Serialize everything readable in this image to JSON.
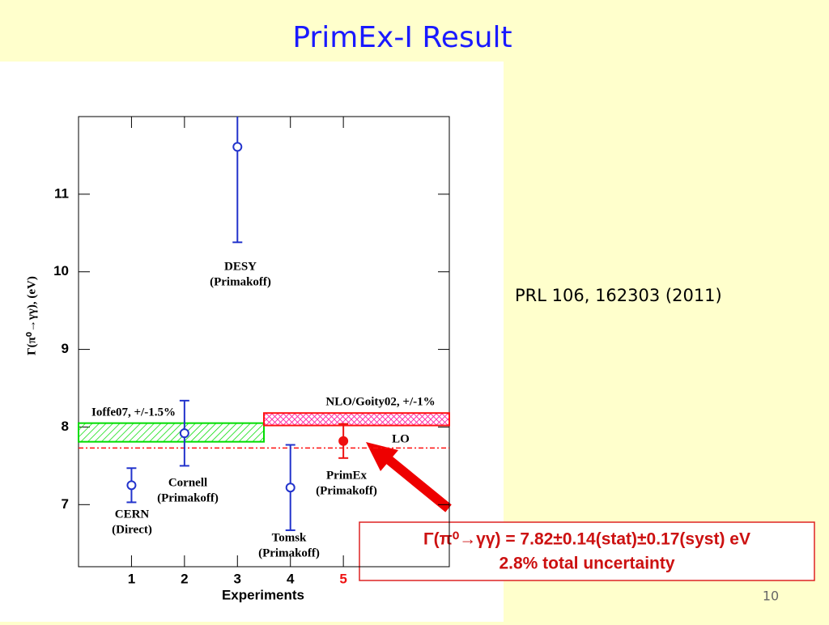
{
  "slide_title": "PrimEx-I  Result",
  "reference": "PRL 106, 162303 (2011)",
  "result": {
    "line1": "Γ(π⁰→γγ) = 7.82±0.14(stat)±0.17(syst) eV",
    "line2": "2.8% total uncertainty"
  },
  "page_number": "10",
  "chart_data": {
    "type": "scatter",
    "x_label": "Experiments",
    "y_label": "Γ(π⁰→γγ),   (eV)",
    "x": [
      1,
      2,
      3,
      4,
      5
    ],
    "values": [
      7.25,
      7.92,
      11.61,
      7.22,
      7.82
    ],
    "errors": [
      0.22,
      0.42,
      1.23,
      0.55,
      0.22
    ],
    "point_labels": [
      [
        "CERN",
        "(Direct)"
      ],
      [
        "Cornell",
        "(Primakoff)"
      ],
      [
        "DESY",
        "(Primakoff)"
      ],
      [
        "Tomsk",
        "(Primakoff)"
      ],
      [
        "PrimEx",
        "(Primakoff)"
      ]
    ],
    "point_colors": [
      "#2233cc",
      "#2233cc",
      "#2233cc",
      "#2233cc",
      "#ee1111"
    ],
    "xtick_colors": [
      "#000000",
      "#000000",
      "#000000",
      "#000000",
      "#ee1111"
    ],
    "bands": [
      {
        "label": "Ioffe07, +/-1.5%",
        "x": [
          0,
          3.5
        ],
        "y": [
          7.81,
          8.05
        ],
        "color": "#00dd00"
      },
      {
        "label": "NLO/Goity02, +/-1%",
        "x": [
          3.5,
          7
        ],
        "y": [
          8.02,
          8.18
        ],
        "color": "#ff1111"
      }
    ],
    "lines": [
      {
        "label": "LO",
        "y": 7.73,
        "color": "#ff1111"
      }
    ],
    "xlim": [
      0,
      7
    ],
    "ylim": [
      6.2,
      12
    ],
    "xticks": [
      1,
      2,
      3,
      4,
      5
    ],
    "yticks": [
      7,
      8,
      9,
      10,
      11
    ]
  }
}
